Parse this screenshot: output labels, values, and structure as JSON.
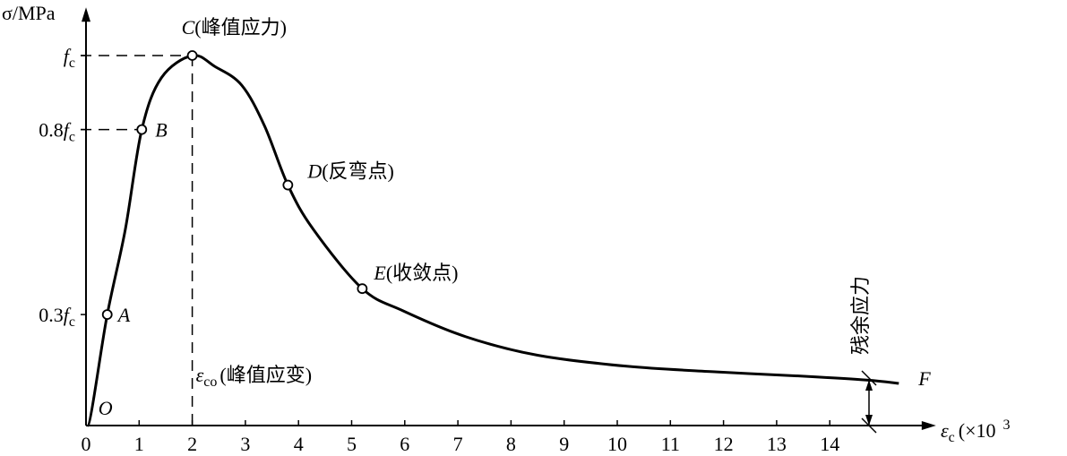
{
  "chart_data": {
    "type": "line",
    "y_label": "σ/MPa",
    "x_label": {
      "symbol": "ε",
      "sub": "c",
      "text": "(×10",
      "sup": "3"
    },
    "xlim": [
      0,
      16
    ],
    "xticks": [
      0,
      1,
      2,
      3,
      4,
      5,
      6,
      7,
      8,
      9,
      10,
      11,
      12,
      13,
      14
    ],
    "ylim": [
      0,
      1.13
    ],
    "yticks": [
      {
        "value": 0.3,
        "label": "0.3f",
        "sub": "c"
      },
      {
        "value": 0.8,
        "label": "0.8f",
        "sub": "c"
      },
      {
        "value": 1,
        "label": "f",
        "sub": "c"
      }
    ],
    "color": "#000000",
    "curve": {
      "x": [
        0.03,
        0.4,
        0.74,
        1.05,
        1.42,
        2.0,
        2.43,
        2.93,
        3.36,
        3.8,
        4.28,
        5.2,
        5.97,
        7.15,
        8.5,
        10.2,
        11.87,
        13.56,
        14.7,
        15.3
      ],
      "y": [
        0,
        0.3,
        0.53,
        0.8,
        0.94,
        1,
        0.97,
        0.92,
        0.81,
        0.65,
        0.53,
        0.37,
        0.31,
        0.24,
        0.19,
        0.16,
        0.145,
        0.133,
        0.123,
        0.114
      ]
    },
    "points": [
      {
        "name": "O",
        "x": 0.03,
        "y": 0,
        "marker": false
      },
      {
        "name": "A",
        "x": 0.4,
        "y": 0.3,
        "marker": true
      },
      {
        "name": "B",
        "x": 1.05,
        "y": 0.8,
        "marker": true
      },
      {
        "name": "C",
        "note": "(峰值应力)",
        "x": 2.0,
        "y": 1,
        "marker": true
      },
      {
        "name": "D",
        "note": "(反弯点)",
        "x": 3.8,
        "y": 0.65,
        "marker": true
      },
      {
        "name": "E",
        "note": "(收敛点)",
        "x": 5.2,
        "y": 0.37,
        "marker": true
      },
      {
        "name": "F",
        "x": 15.3,
        "y": 0.114,
        "marker": false
      }
    ],
    "peak_strain_label": {
      "symbol": "ε",
      "sub": "co",
      "text": "(峰值应变)"
    },
    "residual_label": "残余应力"
  }
}
